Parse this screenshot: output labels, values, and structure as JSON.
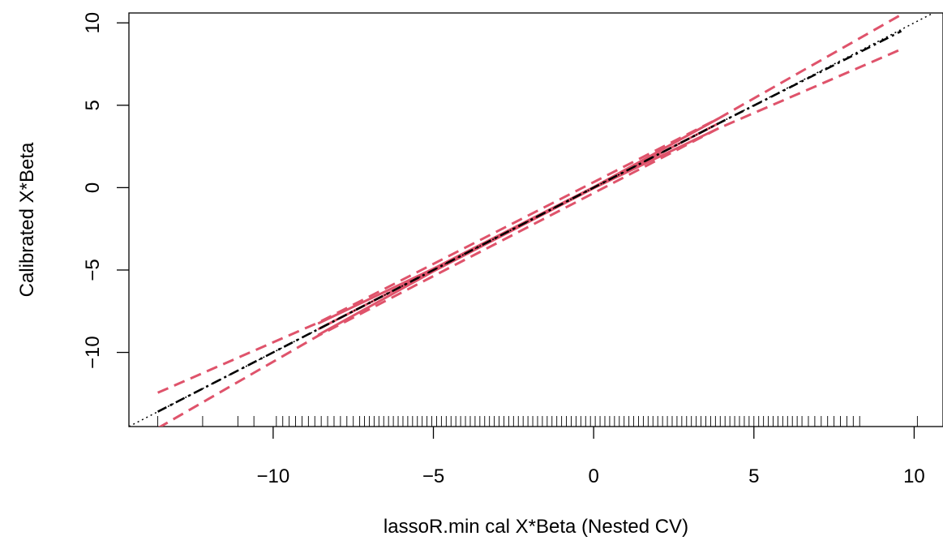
{
  "chart_data": {
    "type": "line",
    "title": "",
    "xlabel": "lassoR.min cal X*Beta (Nested CV)",
    "ylabel": "Calibrated X*Beta",
    "xlim": [
      -14.5,
      10.9
    ],
    "ylim": [
      -14.5,
      10.6
    ],
    "x_ticks": [
      -10,
      -5,
      0,
      5,
      10
    ],
    "x_tick_labels": [
      "−10",
      "−5",
      "0",
      "5",
      "10"
    ],
    "y_ticks": [
      -10,
      -5,
      0,
      5,
      10
    ],
    "y_tick_labels": [
      "−10",
      "−5",
      "0",
      "5",
      "10"
    ],
    "grid": false,
    "colors": {
      "calibration": "#000000",
      "smooth": "#DF536B",
      "identity": "#000000"
    },
    "series": [
      {
        "style": "identity-dotted",
        "x": [
          -14.5,
          10.9
        ],
        "y": [
          -14.5,
          10.9
        ]
      },
      {
        "style": "calibration-dashdot-black",
        "x": [
          -13.6,
          -8.6,
          3.9,
          9.6
        ],
        "y": [
          -13.6,
          -8.6,
          3.9,
          9.5
        ]
      },
      {
        "style": "smooth-solid-red",
        "x": [
          -8.6,
          3.9
        ],
        "y": [
          -8.6,
          3.9
        ]
      },
      {
        "style": "smooth-band-upper-solid-red",
        "x": [
          -8.6,
          -5,
          0,
          3.9
        ],
        "y": [
          -8.25,
          -4.92,
          0.03,
          4.2
        ]
      },
      {
        "style": "smooth-band-lower-solid-red",
        "x": [
          -8.6,
          -5,
          0,
          3.9
        ],
        "y": [
          -8.95,
          -5.08,
          -0.03,
          3.6
        ]
      },
      {
        "style": "ci-upper-dashed-red",
        "x": [
          -13.6,
          -8.6,
          3.9,
          9.6
        ],
        "y": [
          -12.45,
          -8.2,
          4.2,
          10.5
        ]
      },
      {
        "style": "ci-lower-dashed-red",
        "x": [
          -13.6,
          -8.6,
          3.9,
          9.6
        ],
        "y": [
          -14.6,
          -9.0,
          3.6,
          8.4
        ]
      }
    ],
    "rug_x": [
      -13.6,
      -12.2,
      -11.1,
      -10.6,
      -9.9,
      -9.7,
      -9.5,
      -9.3,
      -9.1,
      -8.9,
      -8.7,
      -8.5,
      -8.3,
      -8.1,
      -7.9,
      -7.7,
      -7.5,
      -7.3,
      -7.15,
      -7.0,
      -6.85,
      -6.7,
      -6.55,
      -6.4,
      -6.25,
      -6.1,
      -5.95,
      -5.8,
      -5.65,
      -5.5,
      -5.35,
      -5.2,
      -5.05,
      -4.9,
      -4.75,
      -4.6,
      -4.45,
      -4.3,
      -4.15,
      -4.0,
      -3.85,
      -3.7,
      -3.55,
      -3.4,
      -3.25,
      -3.1,
      -2.95,
      -2.8,
      -2.65,
      -2.5,
      -2.35,
      -2.2,
      -2.05,
      -1.9,
      -1.75,
      -1.6,
      -1.45,
      -1.3,
      -1.15,
      -1.0,
      -0.85,
      -0.7,
      -0.55,
      -0.4,
      -0.25,
      -0.1,
      0.05,
      0.2,
      0.35,
      0.5,
      0.65,
      0.8,
      0.95,
      1.1,
      1.25,
      1.4,
      1.55,
      1.7,
      1.85,
      2.0,
      2.15,
      2.3,
      2.45,
      2.6,
      2.75,
      2.9,
      3.05,
      3.2,
      3.35,
      3.5,
      3.65,
      3.8,
      3.95,
      4.1,
      4.25,
      4.4,
      4.55,
      4.7,
      4.85,
      5.0,
      5.15,
      5.3,
      5.45,
      5.6,
      5.75,
      5.9,
      6.05,
      6.2,
      6.35,
      6.5,
      6.7,
      6.9,
      7.1,
      7.3,
      7.5,
      7.7,
      7.9,
      8.1,
      8.3,
      10.1
    ]
  }
}
